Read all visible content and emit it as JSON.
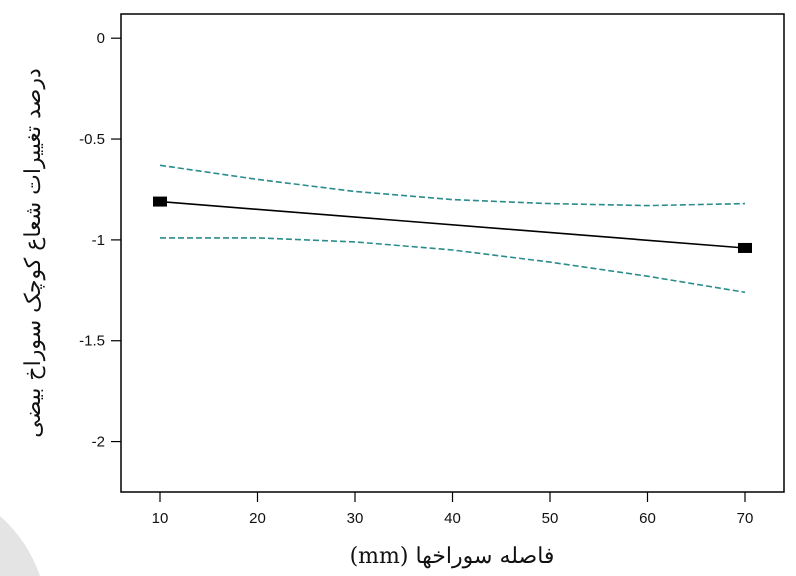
{
  "chart_data": {
    "type": "line",
    "title": "",
    "xlabel": "فاصله سوراخها (mm)",
    "ylabel": "درصد تغییرات شعاع کوچک سوراخ بیضی",
    "xlim": [
      6,
      74
    ],
    "ylim": [
      -2.25,
      0.12
    ],
    "xticks": [
      10,
      20,
      30,
      40,
      50,
      60,
      70
    ],
    "xtick_labels": [
      "10",
      "20",
      "30",
      "40",
      "50",
      "60",
      "70"
    ],
    "yticks": [
      0,
      -0.5,
      -1,
      -1.5,
      -2
    ],
    "ytick_labels": [
      "0",
      "-0.5",
      "-1",
      "-1.5",
      "-2"
    ],
    "grid": false,
    "series": [
      {
        "role": "fit",
        "color": "#000000",
        "style": "solid",
        "markers": "square",
        "points": [
          {
            "x": 10,
            "y": -0.81
          },
          {
            "x": 70,
            "y": -1.04
          }
        ]
      },
      {
        "role": "upper-confidence",
        "color": "#2a8c8c",
        "style": "dashed",
        "points": [
          {
            "x": 10,
            "y": -0.63
          },
          {
            "x": 20,
            "y": -0.7
          },
          {
            "x": 30,
            "y": -0.76
          },
          {
            "x": 40,
            "y": -0.8
          },
          {
            "x": 50,
            "y": -0.82
          },
          {
            "x": 60,
            "y": -0.83
          },
          {
            "x": 70,
            "y": -0.82
          }
        ]
      },
      {
        "role": "lower-confidence",
        "color": "#2a8c8c",
        "style": "dashed",
        "points": [
          {
            "x": 10,
            "y": -0.99
          },
          {
            "x": 20,
            "y": -0.99
          },
          {
            "x": 30,
            "y": -1.01
          },
          {
            "x": 40,
            "y": -1.05
          },
          {
            "x": 50,
            "y": -1.11
          },
          {
            "x": 60,
            "y": -1.18
          },
          {
            "x": 70,
            "y": -1.26
          }
        ]
      }
    ]
  }
}
